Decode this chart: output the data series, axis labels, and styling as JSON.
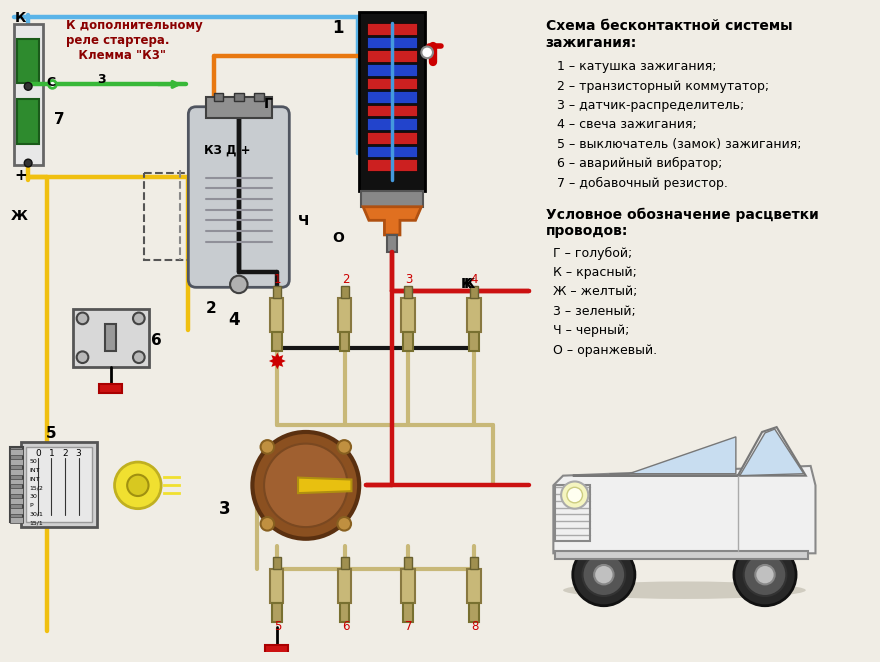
{
  "bg_color": "#f0ede5",
  "legend_title": "Схема бесконтактной системы\nзажигания:",
  "legend_items": [
    "1 – катушка зажигания;",
    "2 – транзисторный коммутатор;",
    "3 – датчик-распределитель;",
    "4 – свеча зажигания;",
    "5 – выключатель (замок) зажигания;",
    "6 – аварийный вибратор;",
    "7 – добавочный резистор."
  ],
  "wire_legend_title": "Условное обозначение расцветки\nпроводов:",
  "wire_legend_items": [
    "Г – голубой;",
    "К – красный;",
    "Ж – желтый;",
    "3 – зеленый;",
    "Ч – черный;",
    "О – оранжевый."
  ],
  "colors": {
    "blue": "#5ab4e8",
    "red": "#cc1111",
    "yellow": "#f0c010",
    "green": "#38b838",
    "black": "#151515",
    "orange": "#e87810",
    "dark_red": "#8b0000",
    "gray": "#a0a0a0",
    "beige": "#c8b878",
    "light_gray": "#d8d8d8",
    "dark_gray": "#505050",
    "brown": "#7a4520"
  }
}
